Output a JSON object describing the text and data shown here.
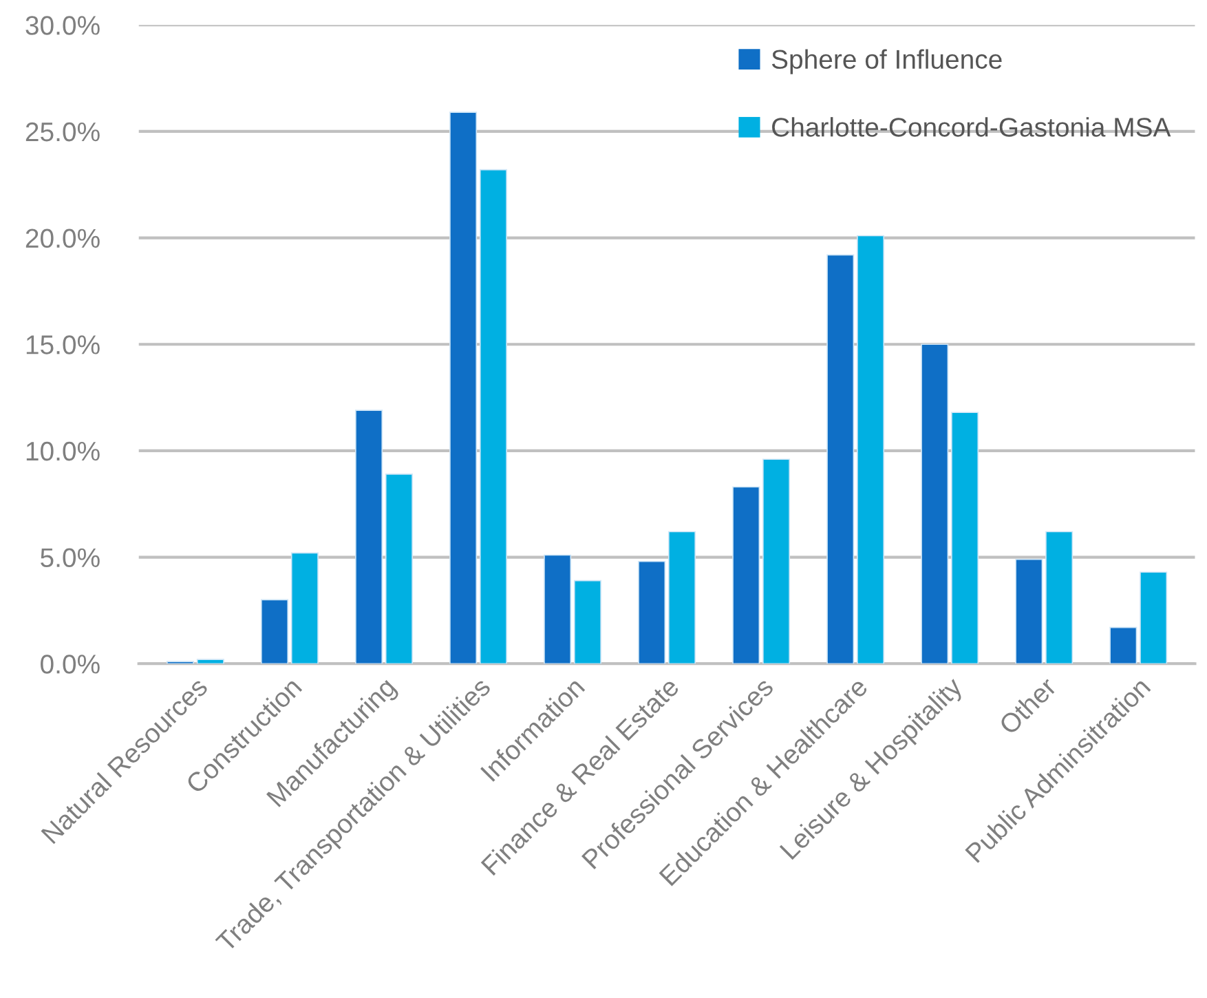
{
  "chart_data": {
    "type": "bar",
    "categories": [
      "Natural Resources",
      "Construction",
      "Manufacturing",
      "Trade, Transportation & Utilities",
      "Information",
      "Finance & Real Estate",
      "Professional Services",
      "Education & Healthcare",
      "Leisure & Hospitality",
      "Other",
      "Public Adminsitration"
    ],
    "series": [
      {
        "name": "Sphere of Influence",
        "color": "#0f6fc6",
        "values": [
          0.1,
          3.0,
          11.9,
          25.9,
          5.1,
          4.8,
          8.3,
          19.2,
          15.0,
          4.9,
          1.7
        ]
      },
      {
        "name": "Charlotte-Concord-Gastonia MSA",
        "color": "#00b0e2",
        "values": [
          0.2,
          5.2,
          8.9,
          23.2,
          3.9,
          6.2,
          9.6,
          20.1,
          11.8,
          6.2,
          4.3
        ]
      }
    ],
    "ylim": [
      0,
      30
    ],
    "yticks": [
      {
        "value": 0,
        "label": "0.0%"
      },
      {
        "value": 5,
        "label": "5.0%"
      },
      {
        "value": 10,
        "label": "10.0%"
      },
      {
        "value": 15,
        "label": "15.0%"
      },
      {
        "value": 20,
        "label": "20.0%"
      },
      {
        "value": 25,
        "label": "25.0%"
      },
      {
        "value": 30,
        "label": "30.0%"
      }
    ],
    "grid": "y",
    "legend": "top right"
  }
}
